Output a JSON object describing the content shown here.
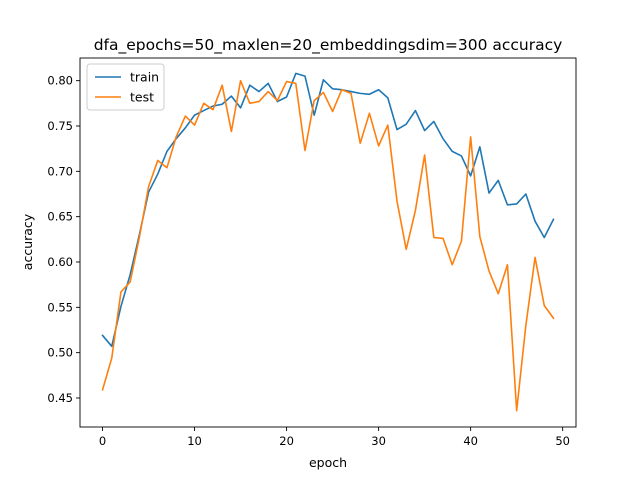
{
  "chart_data": {
    "type": "line",
    "title": "dfa_epochs=50_maxlen=20_embeddingsdim=300 accuracy",
    "xlabel": "epoch",
    "ylabel": "accuracy",
    "xlim": [
      -2.45,
      51.45
    ],
    "ylim": [
      0.418,
      0.825
    ],
    "xticks": [
      0,
      10,
      20,
      30,
      40,
      50
    ],
    "yticks": [
      0.45,
      0.5,
      0.55,
      0.6,
      0.65,
      0.7,
      0.75,
      0.8
    ],
    "grid": false,
    "legend_position": "top-left",
    "x": [
      0,
      1,
      2,
      3,
      4,
      5,
      6,
      7,
      8,
      9,
      10,
      11,
      12,
      13,
      14,
      15,
      16,
      17,
      18,
      19,
      20,
      21,
      22,
      23,
      24,
      25,
      26,
      27,
      28,
      29,
      30,
      31,
      32,
      33,
      34,
      35,
      36,
      37,
      38,
      39,
      40,
      41,
      42,
      43,
      44,
      45,
      46,
      47,
      48,
      49
    ],
    "series": [
      {
        "name": "train",
        "color": "#1f77b4",
        "values": [
          0.519,
          0.507,
          0.551,
          0.586,
          0.63,
          0.677,
          0.697,
          0.722,
          0.736,
          0.748,
          0.762,
          0.767,
          0.772,
          0.774,
          0.783,
          0.77,
          0.795,
          0.788,
          0.797,
          0.777,
          0.782,
          0.808,
          0.805,
          0.762,
          0.801,
          0.791,
          0.79,
          0.788,
          0.786,
          0.785,
          0.79,
          0.781,
          0.746,
          0.752,
          0.767,
          0.745,
          0.755,
          0.736,
          0.722,
          0.717,
          0.695,
          0.727,
          0.676,
          0.69,
          0.663,
          0.664,
          0.675,
          0.645,
          0.627,
          0.647
        ]
      },
      {
        "name": "test",
        "color": "#ff7f0e",
        "values": [
          0.459,
          0.494,
          0.567,
          0.578,
          0.627,
          0.683,
          0.712,
          0.704,
          0.738,
          0.761,
          0.751,
          0.775,
          0.768,
          0.795,
          0.744,
          0.8,
          0.775,
          0.777,
          0.788,
          0.778,
          0.799,
          0.797,
          0.723,
          0.778,
          0.787,
          0.766,
          0.79,
          0.786,
          0.731,
          0.764,
          0.728,
          0.751,
          0.667,
          0.614,
          0.657,
          0.718,
          0.627,
          0.626,
          0.597,
          0.623,
          0.738,
          0.628,
          0.59,
          0.565,
          0.597,
          0.436,
          0.53,
          0.605,
          0.552,
          0.538
        ]
      }
    ]
  }
}
